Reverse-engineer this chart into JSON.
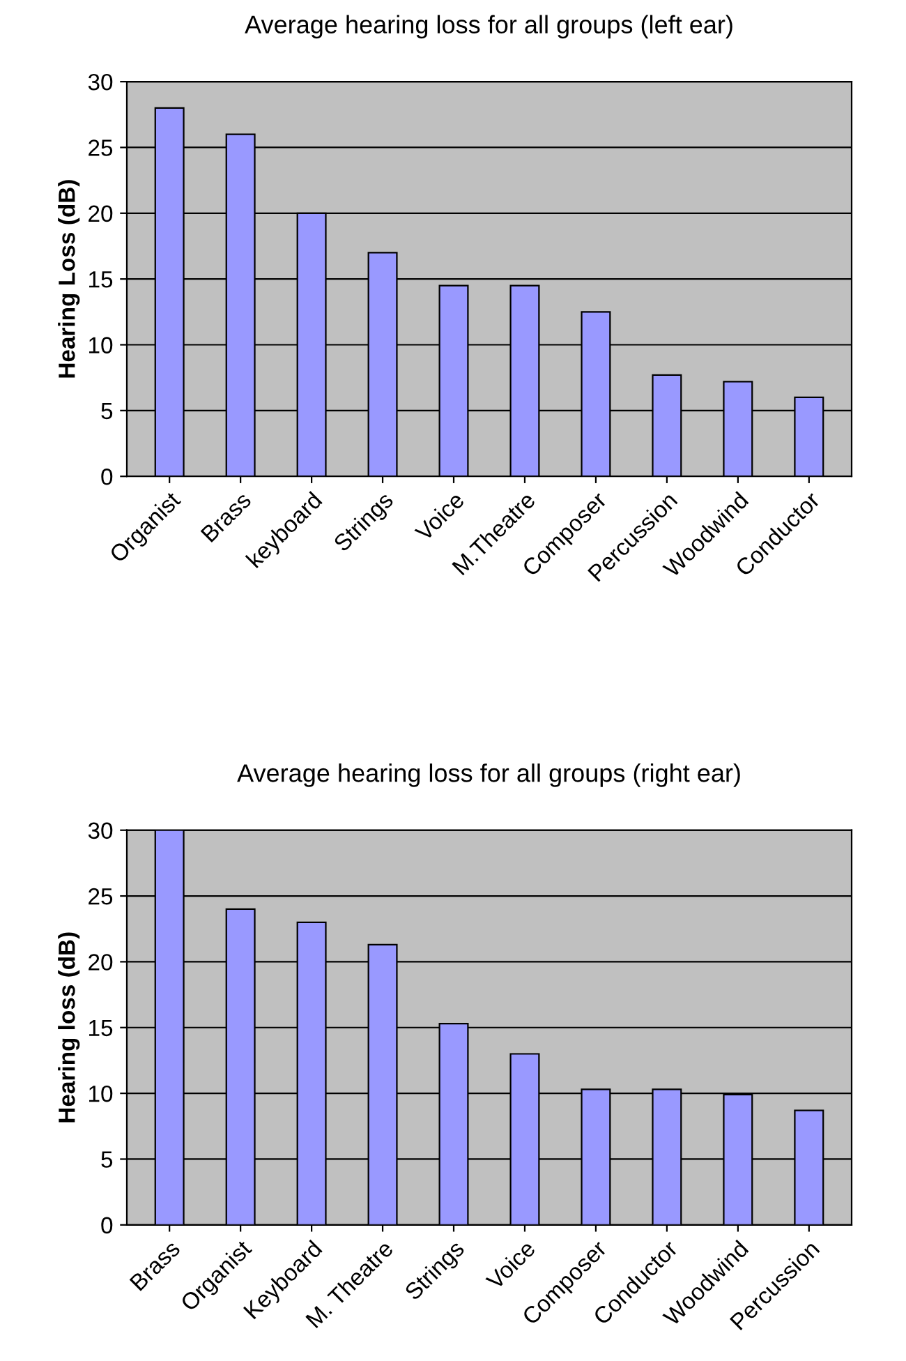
{
  "chart_data": [
    {
      "type": "bar",
      "title": "Average hearing loss for all groups (left ear)",
      "ylabel": "Hearing Loss (dB)",
      "categories": [
        "Organist",
        "Brass",
        "keyboard",
        "Strings",
        "Voice",
        "M.Theatre",
        "Composer",
        "Percussion",
        "Woodwind",
        "Conductor"
      ],
      "series": [
        {
          "color": "#9999ff",
          "values": [
            28,
            26,
            20,
            17,
            14.5,
            14.5,
            12.5,
            7.7,
            7.2,
            6
          ]
        }
      ],
      "ylim": [
        0,
        30
      ],
      "yticks": [
        0,
        5,
        10,
        15,
        20,
        25,
        30
      ],
      "grid": "y"
    },
    {
      "type": "bar",
      "title": "Average hearing loss for all groups (right ear)",
      "ylabel": "Hearing loss (dB)",
      "categories": [
        "Brass",
        "Organist",
        "Keyboard",
        "M. Theatre",
        "Strings",
        "Voice",
        "Composer",
        "Conductor",
        "Woodwind",
        "Percussion"
      ],
      "series": [
        {
          "color": "#9999ff",
          "values": [
            30,
            24,
            23,
            21.3,
            15.3,
            13,
            10.3,
            10.3,
            9.9,
            8.7
          ]
        }
      ],
      "ylim": [
        0,
        30
      ],
      "yticks": [
        0,
        5,
        10,
        15,
        20,
        25,
        30
      ],
      "grid": "y"
    }
  ]
}
